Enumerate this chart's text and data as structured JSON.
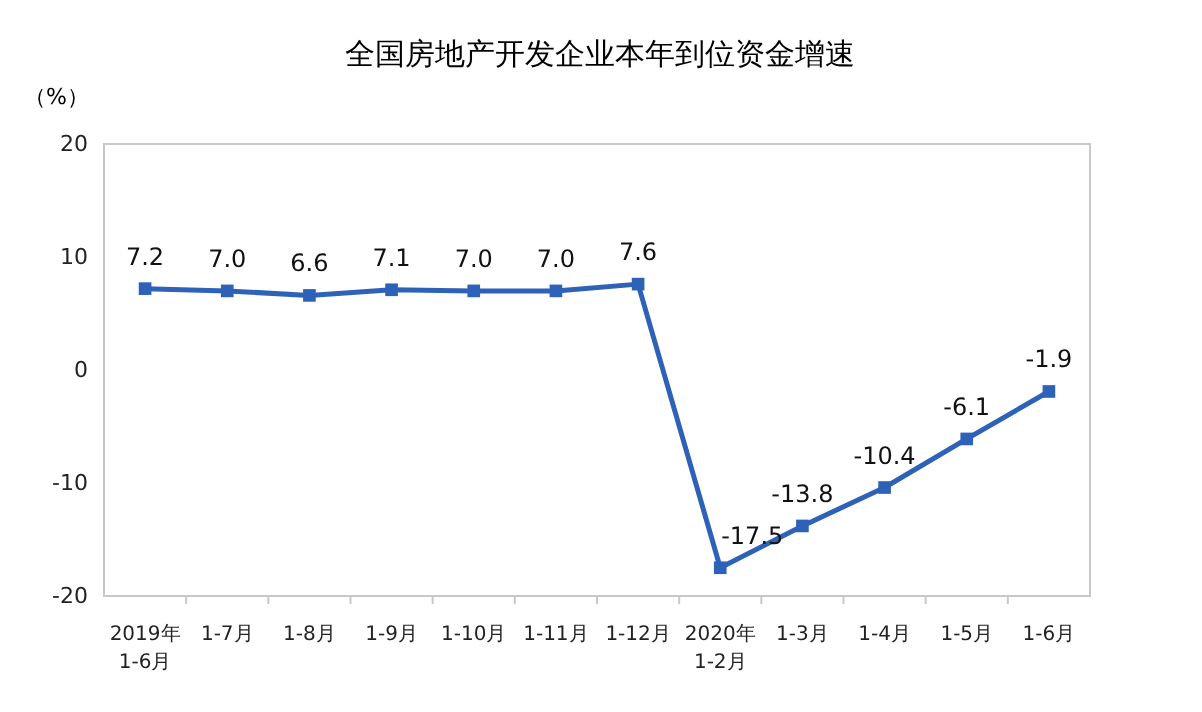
{
  "chart_data": {
    "type": "line",
    "title": "全国房地产开发企业本年到位资金增速",
    "ylabel": "（%）",
    "categories": [
      "2019年\n1-6月",
      "1-7月",
      "1-8月",
      "1-9月",
      "1-10月",
      "1-11月",
      "1-12月",
      "2020年\n1-2月",
      "1-3月",
      "1-4月",
      "1-5月",
      "1-6月"
    ],
    "series": [
      {
        "color": "#2e62b8",
        "values": [
          7.2,
          7.0,
          6.6,
          7.1,
          7.0,
          7.0,
          7.6,
          -17.5,
          -13.8,
          -10.4,
          -6.1,
          -1.9
        ],
        "value_labels": [
          "7.2",
          "7.0",
          "6.6",
          "7.1",
          "7.0",
          "7.0",
          "7.6",
          "-17.5",
          "-13.8",
          "-10.4",
          "-6.1",
          "-1.9"
        ]
      }
    ],
    "ylim": [
      -20,
      20
    ],
    "yticks": [
      -20,
      -10,
      0,
      10,
      20
    ],
    "grid": false,
    "marker": "square",
    "line_style": "solid"
  }
}
